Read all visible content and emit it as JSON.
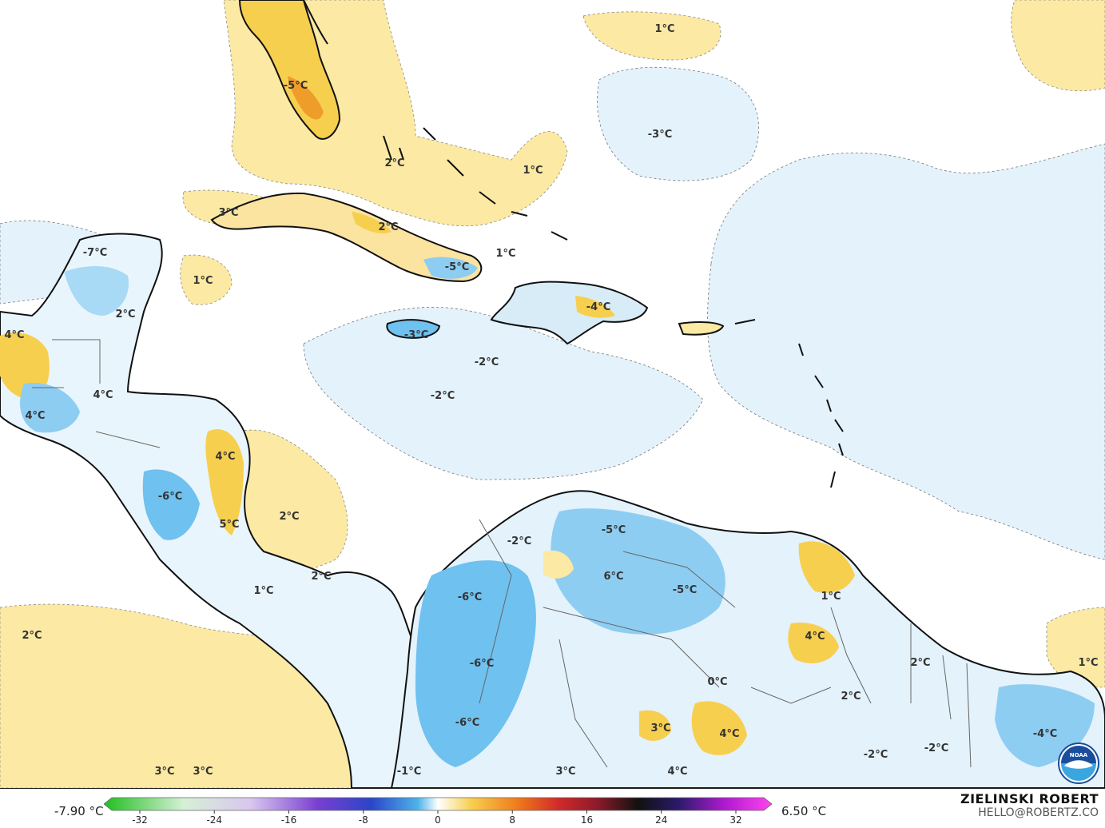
{
  "map": {
    "labels": [
      {
        "text": "1°C",
        "pos": [
          832,
          35
        ]
      },
      {
        "text": "-5°C",
        "pos": [
          370,
          106
        ]
      },
      {
        "text": "-3°C",
        "pos": [
          826,
          167
        ]
      },
      {
        "text": "2°C",
        "pos": [
          494,
          203
        ]
      },
      {
        "text": "1°C",
        "pos": [
          667,
          212
        ]
      },
      {
        "text": "3°C",
        "pos": [
          286,
          265
        ]
      },
      {
        "text": "2°C",
        "pos": [
          486,
          283
        ]
      },
      {
        "text": "-7°C",
        "pos": [
          119,
          315
        ]
      },
      {
        "text": "1°C",
        "pos": [
          633,
          316
        ]
      },
      {
        "text": "-5°C",
        "pos": [
          572,
          333
        ]
      },
      {
        "text": "1°C",
        "pos": [
          254,
          350
        ]
      },
      {
        "text": "-4°C",
        "pos": [
          749,
          383
        ]
      },
      {
        "text": "2°C",
        "pos": [
          157,
          392
        ]
      },
      {
        "text": "4°C",
        "pos": [
          18,
          418
        ]
      },
      {
        "text": "-3°C",
        "pos": [
          521,
          418
        ]
      },
      {
        "text": "-2°C",
        "pos": [
          609,
          452
        ]
      },
      {
        "text": "4°C",
        "pos": [
          129,
          493
        ]
      },
      {
        "text": "-2°C",
        "pos": [
          554,
          494
        ]
      },
      {
        "text": "4°C",
        "pos": [
          44,
          519
        ]
      },
      {
        "text": "4°C",
        "pos": [
          282,
          570
        ]
      },
      {
        "text": "-6°C",
        "pos": [
          213,
          620
        ]
      },
      {
        "text": "2°C",
        "pos": [
          362,
          645
        ]
      },
      {
        "text": "5°C",
        "pos": [
          287,
          655
        ]
      },
      {
        "text": "-5°C",
        "pos": [
          768,
          662
        ]
      },
      {
        "text": "-2°C",
        "pos": [
          650,
          676
        ]
      },
      {
        "text": "2°C",
        "pos": [
          402,
          720
        ]
      },
      {
        "text": "6°C",
        "pos": [
          768,
          720
        ]
      },
      {
        "text": "-5°C",
        "pos": [
          857,
          737
        ]
      },
      {
        "text": "1°C",
        "pos": [
          330,
          738
        ]
      },
      {
        "text": "-6°C",
        "pos": [
          588,
          746
        ]
      },
      {
        "text": "1°C",
        "pos": [
          1040,
          745
        ]
      },
      {
        "text": "2°C",
        "pos": [
          40,
          794
        ]
      },
      {
        "text": "4°C",
        "pos": [
          1020,
          795
        ]
      },
      {
        "text": "1°C",
        "pos": [
          1362,
          828
        ]
      },
      {
        "text": "-6°C",
        "pos": [
          603,
          829
        ]
      },
      {
        "text": "2°C",
        "pos": [
          1152,
          828
        ]
      },
      {
        "text": "0°C",
        "pos": [
          898,
          852
        ]
      },
      {
        "text": "2°C",
        "pos": [
          1065,
          870
        ]
      },
      {
        "text": "-6°C",
        "pos": [
          585,
          903
        ]
      },
      {
        "text": "3°C",
        "pos": [
          827,
          910
        ]
      },
      {
        "text": "4°C",
        "pos": [
          913,
          917
        ]
      },
      {
        "text": "-4°C",
        "pos": [
          1308,
          917
        ]
      },
      {
        "text": "-2°C",
        "pos": [
          1172,
          935
        ]
      },
      {
        "text": "-2°C",
        "pos": [
          1096,
          943
        ]
      },
      {
        "text": "-1°C",
        "pos": [
          512,
          964
        ]
      },
      {
        "text": "3°C",
        "pos": [
          206,
          964
        ]
      },
      {
        "text": "3°C",
        "pos": [
          254,
          964
        ]
      },
      {
        "text": "3°C",
        "pos": [
          708,
          964
        ]
      },
      {
        "text": "4°C",
        "pos": [
          848,
          964
        ]
      }
    ]
  },
  "legend": {
    "min_label": "-7.90 °C",
    "max_label": "6.50 °C",
    "ticks": [
      "-32",
      "-24",
      "-16",
      "-8",
      "0",
      "8",
      "16",
      "24",
      "32"
    ]
  },
  "credit": {
    "name": "ZIELINSKI ROBERT",
    "email": "HELLO@ROBERTZ.CO"
  },
  "logo": {
    "text": "NOAA"
  },
  "colors": {
    "warm_light": "#fbe9a4",
    "warm": "#f7cf4f",
    "warm_dark": "#ef9d2a",
    "cool_light": "#e3f1fb",
    "cool": "#a8d9f5",
    "cool_dark": "#4db3ea",
    "coast": "#111111"
  }
}
